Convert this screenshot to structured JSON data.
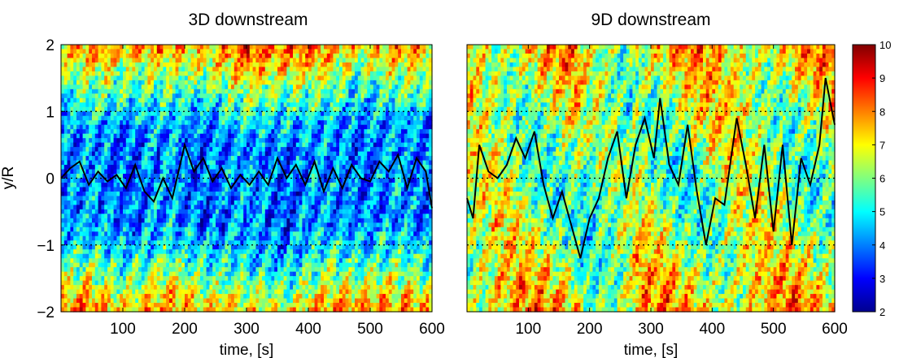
{
  "chart_data": [
    {
      "type": "heatmap",
      "title": "3D downstream",
      "xlabel": "time, [s]",
      "ylabel": "y/R",
      "xlim": [
        0,
        600
      ],
      "ylim": [
        -2,
        2
      ],
      "xticks": [
        100,
        200,
        300,
        400,
        500,
        600
      ],
      "yticks": [
        -2,
        -1,
        0,
        1,
        2
      ],
      "grid": "dotted lines at y = -1, 0, 1",
      "line": {
        "color": "#000000",
        "x": [
          0,
          15,
          30,
          45,
          60,
          75,
          90,
          105,
          120,
          135,
          150,
          165,
          180,
          195,
          200,
          215,
          230,
          245,
          260,
          275,
          290,
          305,
          320,
          335,
          350,
          365,
          380,
          395,
          410,
          425,
          440,
          455,
          470,
          485,
          500,
          515,
          530,
          545,
          560,
          575,
          590,
          600
        ],
        "y": [
          0.0,
          0.15,
          0.25,
          -0.1,
          0.1,
          -0.05,
          0.05,
          -0.15,
          0.2,
          -0.2,
          -0.35,
          0.0,
          -0.3,
          0.3,
          0.5,
          0.1,
          0.3,
          -0.05,
          0.15,
          -0.15,
          0.05,
          -0.1,
          0.1,
          -0.1,
          0.3,
          0.0,
          0.2,
          -0.1,
          0.25,
          -0.2,
          0.15,
          -0.15,
          0.2,
          0.0,
          -0.05,
          0.25,
          0.1,
          0.35,
          -0.15,
          0.3,
          0.1,
          -0.45
        ]
      }
    },
    {
      "type": "heatmap",
      "title": "9D downstream",
      "xlabel": "time, [s]",
      "xlim": [
        0,
        600
      ],
      "ylim": [
        -2,
        2
      ],
      "xticks": [
        100,
        200,
        300,
        400,
        500,
        600
      ],
      "grid": "dotted lines at y = -1, 0, 1",
      "line": {
        "color": "#000000",
        "x": [
          0,
          10,
          20,
          35,
          50,
          65,
          80,
          95,
          110,
          125,
          140,
          155,
          170,
          185,
          200,
          215,
          230,
          245,
          260,
          275,
          290,
          305,
          315,
          330,
          345,
          360,
          375,
          390,
          405,
          420,
          440,
          455,
          470,
          485,
          500,
          515,
          530,
          545,
          560,
          575,
          585,
          600
        ],
        "y": [
          -0.3,
          -0.6,
          0.5,
          0.1,
          0.0,
          0.2,
          0.6,
          0.3,
          0.7,
          -0.1,
          -0.6,
          -0.2,
          -0.7,
          -1.2,
          -0.6,
          -0.3,
          0.3,
          0.7,
          -0.3,
          0.5,
          0.9,
          0.3,
          1.2,
          0.2,
          -0.1,
          0.8,
          -0.2,
          -1.0,
          -0.3,
          -0.4,
          0.9,
          0.2,
          -0.6,
          0.5,
          -0.8,
          0.5,
          -1.0,
          0.3,
          -0.1,
          0.5,
          1.5,
          0.8
        ]
      }
    }
  ],
  "colorbar": {
    "min": 2,
    "max": 10,
    "ticks": [
      2,
      3,
      4,
      5,
      6,
      7,
      8,
      9,
      10
    ],
    "colormap": "jet"
  }
}
